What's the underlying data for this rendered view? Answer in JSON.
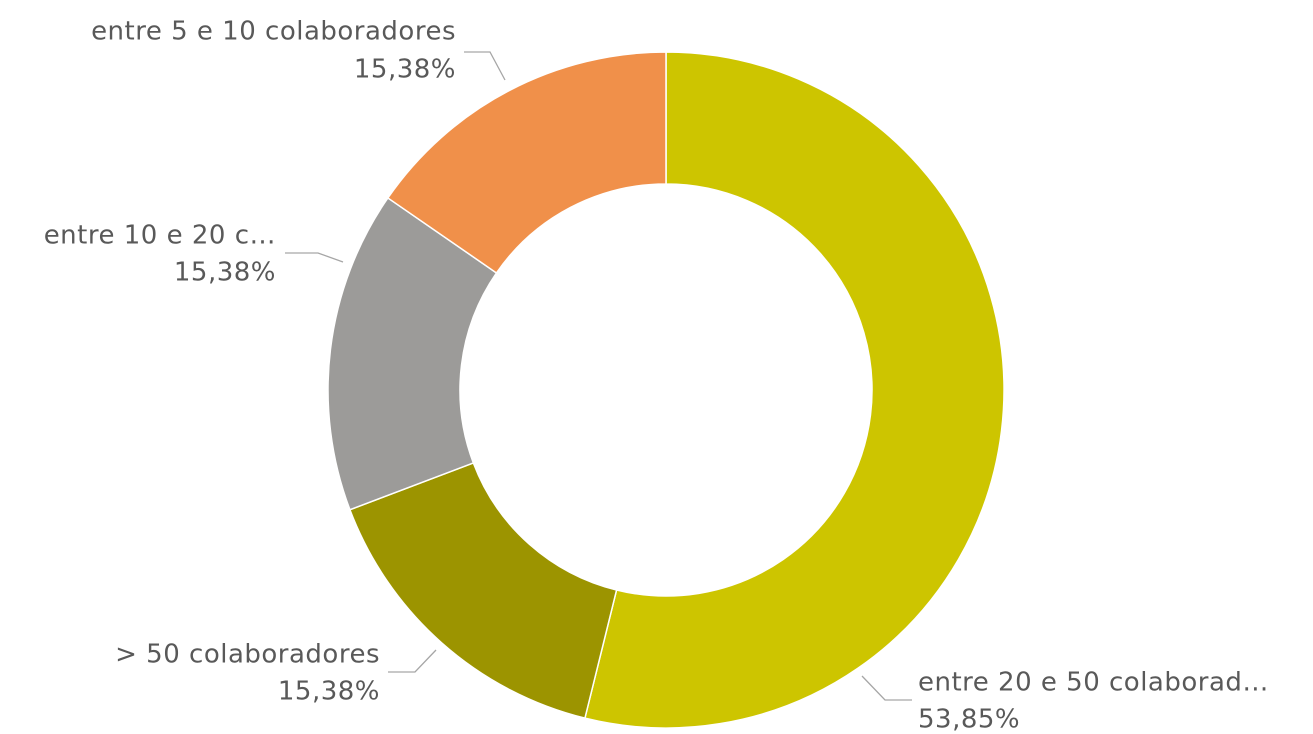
{
  "chart_data": {
    "type": "donut",
    "categories": [
      "entre 20 e 50 colaborad…",
      "> 50 colaboradores",
      "entre 10 e 20 c…",
      "entre 5 e 10 colaboradores"
    ],
    "values": [
      53.85,
      15.38,
      15.38,
      15.38
    ],
    "value_labels": [
      "53,85%",
      "15,38%",
      "15,38%",
      "15,38%"
    ],
    "colors": [
      "#cdc500",
      "#9c9400",
      "#9c9b99",
      "#f0904a"
    ]
  }
}
